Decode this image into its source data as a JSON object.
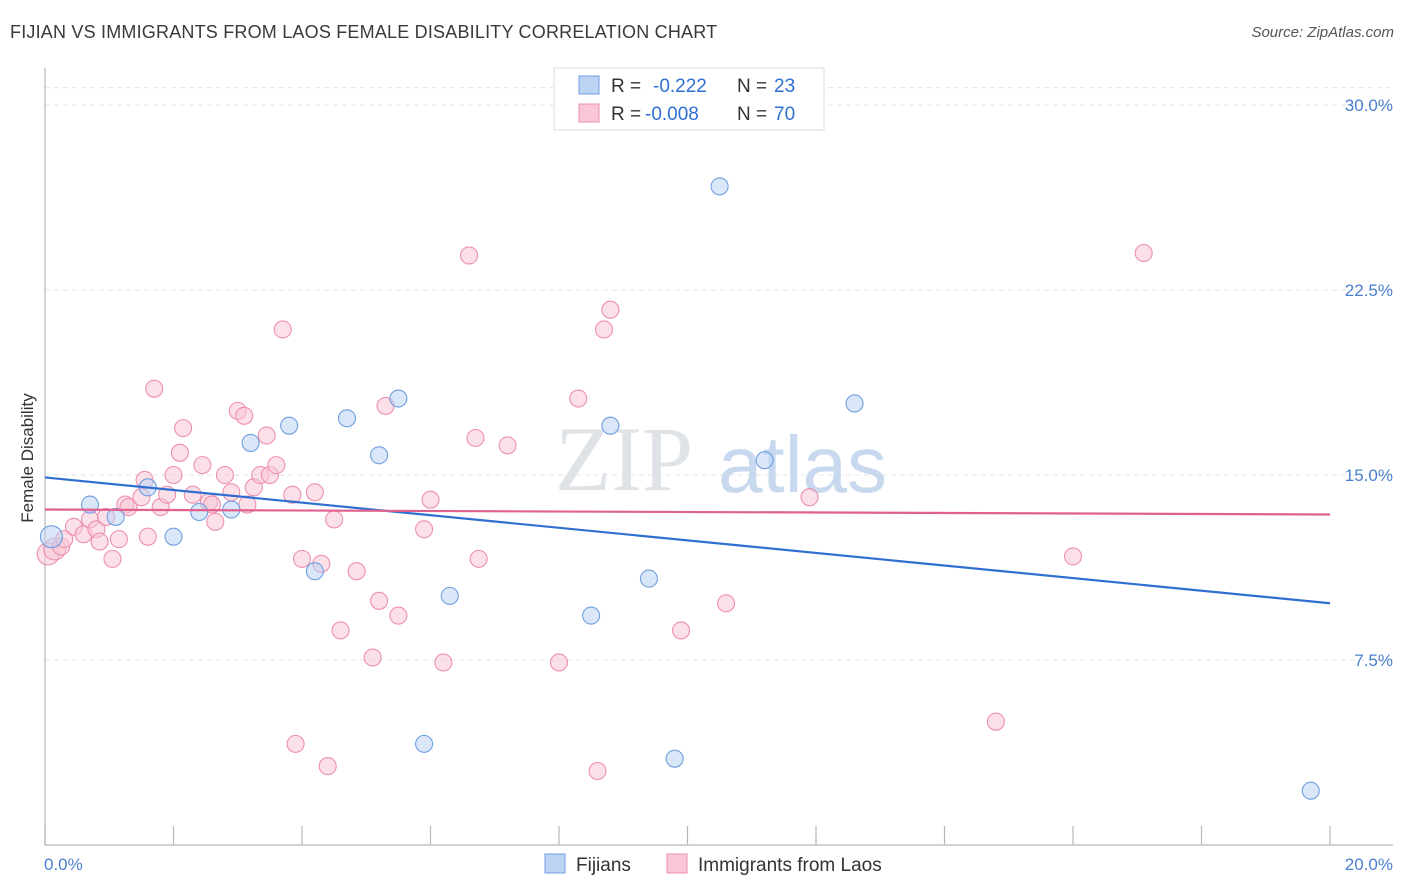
{
  "title": "FIJIAN VS IMMIGRANTS FROM LAOS FEMALE DISABILITY CORRELATION CHART",
  "source": "Source: ZipAtlas.com",
  "watermark": {
    "zip": "ZIP",
    "atlas": "atlas"
  },
  "chart_data": {
    "type": "scatter",
    "ylabel": "Female Disability",
    "xlim": [
      0,
      20
    ],
    "ylim": [
      0,
      31.5
    ],
    "y_ticks": [
      {
        "value": 7.5,
        "label": "7.5%"
      },
      {
        "value": 15.0,
        "label": "15.0%"
      },
      {
        "value": 22.5,
        "label": "22.5%"
      },
      {
        "value": 30.0,
        "label": "30.0%"
      }
    ],
    "x_tick_labels": [
      {
        "value": 0,
        "label": "0.0%"
      },
      {
        "value": 20,
        "label": "20.0%"
      }
    ],
    "x_minor_ticks": [
      0,
      2,
      4,
      6,
      8,
      10,
      12,
      14,
      16,
      18,
      20
    ],
    "legend": {
      "rows": [
        {
          "r_label": "R =",
          "r_value": "-0.222",
          "n_label": "N =",
          "n_value": "23"
        },
        {
          "r_label": "R =",
          "r_value": "-0.008",
          "n_label": "N =",
          "n_value": "70"
        }
      ]
    },
    "series": [
      {
        "name": "Fijians",
        "color": "#6f9fe0",
        "fill": "#bcd3f3",
        "trend": {
          "x0": 0,
          "y0": 14.9,
          "x1": 20,
          "y1": 9.8,
          "color": "#2f6fd0"
        },
        "points": [
          [
            0.1,
            12.5
          ],
          [
            0.7,
            13.8
          ],
          [
            1.1,
            13.3
          ],
          [
            1.6,
            14.5
          ],
          [
            2.0,
            12.5
          ],
          [
            2.4,
            13.5
          ],
          [
            2.9,
            13.6
          ],
          [
            3.2,
            16.3
          ],
          [
            3.8,
            17.0
          ],
          [
            4.2,
            11.1
          ],
          [
            4.7,
            17.3
          ],
          [
            5.2,
            15.8
          ],
          [
            5.5,
            18.1
          ],
          [
            5.9,
            4.1
          ],
          [
            6.3,
            10.1
          ],
          [
            8.5,
            9.3
          ],
          [
            8.8,
            17.0
          ],
          [
            9.4,
            10.8
          ],
          [
            9.8,
            3.5
          ],
          [
            10.5,
            26.7
          ],
          [
            11.2,
            15.6
          ],
          [
            12.6,
            17.9
          ],
          [
            19.7,
            2.2
          ]
        ]
      },
      {
        "name": "Immigrants from Laos",
        "color": "#ee8fb0",
        "fill": "#f8c6d6",
        "trend": {
          "x0": 0,
          "y0": 13.6,
          "x1": 20,
          "y1": 13.4,
          "color": "#e0608e"
        },
        "points": [
          [
            0.05,
            11.8
          ],
          [
            0.15,
            12.0
          ],
          [
            0.25,
            12.1
          ],
          [
            0.3,
            12.4
          ],
          [
            0.45,
            12.9
          ],
          [
            0.6,
            12.6
          ],
          [
            0.7,
            13.2
          ],
          [
            0.8,
            12.8
          ],
          [
            0.85,
            12.3
          ],
          [
            0.95,
            13.3
          ],
          [
            1.05,
            11.6
          ],
          [
            1.15,
            12.4
          ],
          [
            1.25,
            13.8
          ],
          [
            1.3,
            13.7
          ],
          [
            1.5,
            14.1
          ],
          [
            1.55,
            14.8
          ],
          [
            1.6,
            12.5
          ],
          [
            1.7,
            18.5
          ],
          [
            1.8,
            13.7
          ],
          [
            1.9,
            14.2
          ],
          [
            2.0,
            15.0
          ],
          [
            2.1,
            15.9
          ],
          [
            2.15,
            16.9
          ],
          [
            2.3,
            14.2
          ],
          [
            2.45,
            15.4
          ],
          [
            2.55,
            13.9
          ],
          [
            2.6,
            13.8
          ],
          [
            2.65,
            13.1
          ],
          [
            2.8,
            15.0
          ],
          [
            2.9,
            14.3
          ],
          [
            3.0,
            17.6
          ],
          [
            3.1,
            17.4
          ],
          [
            3.15,
            13.8
          ],
          [
            3.25,
            14.5
          ],
          [
            3.35,
            15.0
          ],
          [
            3.45,
            16.6
          ],
          [
            3.5,
            15.0
          ],
          [
            3.6,
            15.4
          ],
          [
            3.7,
            20.9
          ],
          [
            3.85,
            14.2
          ],
          [
            3.9,
            4.1
          ],
          [
            4.0,
            11.6
          ],
          [
            4.2,
            14.3
          ],
          [
            4.3,
            11.4
          ],
          [
            4.4,
            3.2
          ],
          [
            4.6,
            8.7
          ],
          [
            4.85,
            11.1
          ],
          [
            5.1,
            7.6
          ],
          [
            5.2,
            9.9
          ],
          [
            5.3,
            17.8
          ],
          [
            5.5,
            9.3
          ],
          [
            5.9,
            12.8
          ],
          [
            6.0,
            14.0
          ],
          [
            6.2,
            7.4
          ],
          [
            6.6,
            23.9
          ],
          [
            6.7,
            16.5
          ],
          [
            6.75,
            11.6
          ],
          [
            7.2,
            16.2
          ],
          [
            8.0,
            7.4
          ],
          [
            8.3,
            18.1
          ],
          [
            8.6,
            3.0
          ],
          [
            8.7,
            20.9
          ],
          [
            8.8,
            21.7
          ],
          [
            9.9,
            8.7
          ],
          [
            10.6,
            9.8
          ],
          [
            11.9,
            14.1
          ],
          [
            14.8,
            5.0
          ],
          [
            16.0,
            11.7
          ],
          [
            17.1,
            24.0
          ],
          [
            4.5,
            13.2
          ]
        ]
      }
    ]
  }
}
